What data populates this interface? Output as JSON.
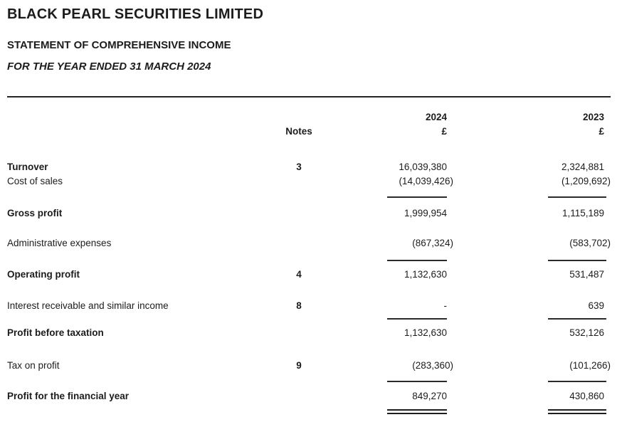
{
  "header": {
    "company": "BLACK PEARL SECURITIES LIMITED",
    "statement_title": "STATEMENT OF COMPREHENSIVE INCOME",
    "period": "FOR THE YEAR ENDED 31 MARCH 2024"
  },
  "table": {
    "columns": {
      "notes": "Notes",
      "year_current": "2024",
      "year_prior": "2023",
      "currency_current": "£",
      "currency_prior": "£"
    },
    "rows": [
      {
        "label": "Turnover",
        "note": "3",
        "current": "16,039,380",
        "prior": "2,324,881"
      },
      {
        "label": "Cost of sales",
        "note": "",
        "current": "(14,039,426)",
        "prior": "(1,209,692)"
      },
      {
        "label": "Gross profit",
        "note": "",
        "current": "1,999,954",
        "prior": "1,115,189"
      },
      {
        "label": "Administrative expenses",
        "note": "",
        "current": "(867,324)",
        "prior": "(583,702)"
      },
      {
        "label": "Operating profit",
        "note": "4",
        "current": "1,132,630",
        "prior": "531,487"
      },
      {
        "label": "Interest receivable and similar income",
        "note": "8",
        "current": "-",
        "prior": "639"
      },
      {
        "label": "Profit before taxation",
        "note": "",
        "current": "1,132,630",
        "prior": "532,126"
      },
      {
        "label": "Tax on profit",
        "note": "9",
        "current": "(283,360)",
        "prior": "(101,266)"
      },
      {
        "label": "Profit for the financial year",
        "note": "",
        "current": "849,270",
        "prior": "430,860"
      }
    ]
  },
  "colors": {
    "text": "#1c1c1c",
    "rule": "#2b2b2b",
    "background": "#ffffff"
  }
}
